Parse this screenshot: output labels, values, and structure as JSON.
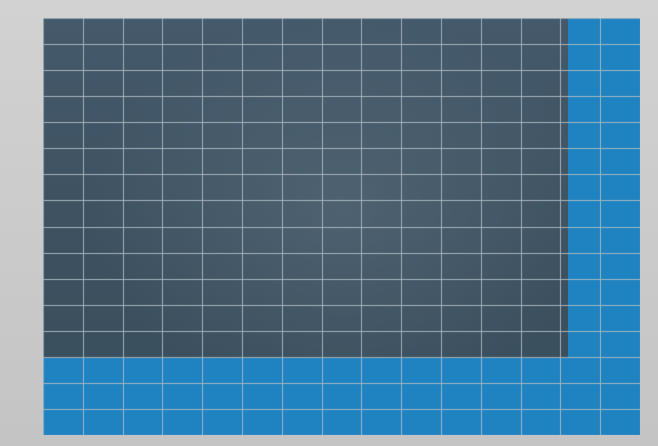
{
  "screen": {
    "feed_label": "",
    "zone_label": "",
    "grid": {
      "columns": 15,
      "rows": 16
    },
    "colors": {
      "bezel": "#c9c9c9",
      "feed": "#3f5462",
      "grid_line": "#a9b7c0",
      "active_zone": "#1f86c6"
    },
    "active_zones": [
      {
        "name": "right-columns",
        "description_visible": false
      },
      {
        "name": "bottom-rows",
        "description_visible": false
      }
    ]
  }
}
